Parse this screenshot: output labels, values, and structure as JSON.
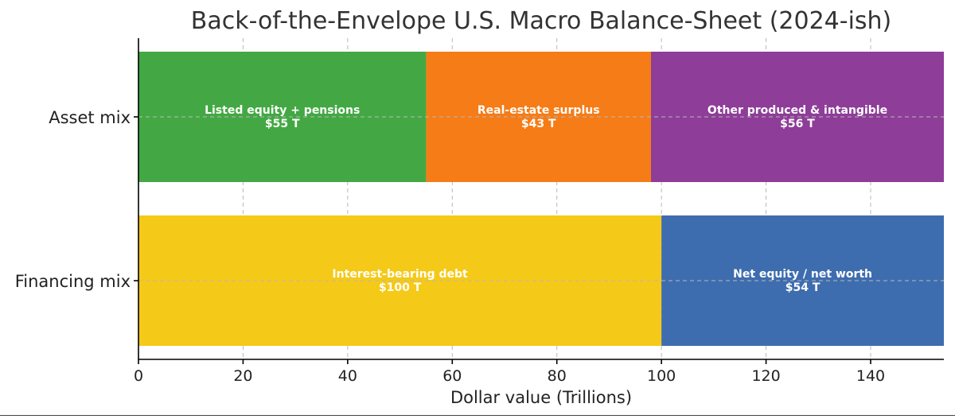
{
  "chart_data": {
    "type": "bar",
    "orientation": "horizontal",
    "stacked": true,
    "title": "Back-of-the-Envelope U.S. Macro Balance-Sheet (2024-ish)",
    "xlabel": "Dollar value (Trillions)",
    "ylabel": "",
    "xlim": [
      0,
      154
    ],
    "xticks": [
      0,
      20,
      40,
      60,
      80,
      100,
      120,
      140
    ],
    "grid": true,
    "categories": [
      "Asset mix",
      "Financing mix"
    ],
    "bars": [
      {
        "category": "Asset mix",
        "segments": [
          {
            "name": "Listed equity + pensions",
            "value": 55,
            "label": "$55 T",
            "color": "#43a843"
          },
          {
            "name": "Real-estate surplus",
            "value": 43,
            "label": "$43 T",
            "color": "#f57c17"
          },
          {
            "name": "Other produced & intangible",
            "value": 56,
            "label": "$56 T",
            "color": "#8e3d98"
          }
        ]
      },
      {
        "category": "Financing mix",
        "segments": [
          {
            "name": "Interest-bearing debt",
            "value": 100,
            "label": "$100 T",
            "color": "#f5c917"
          },
          {
            "name": "Net equity / net worth",
            "value": 54,
            "label": "$54 T",
            "color": "#3e6daf"
          }
        ]
      }
    ]
  }
}
